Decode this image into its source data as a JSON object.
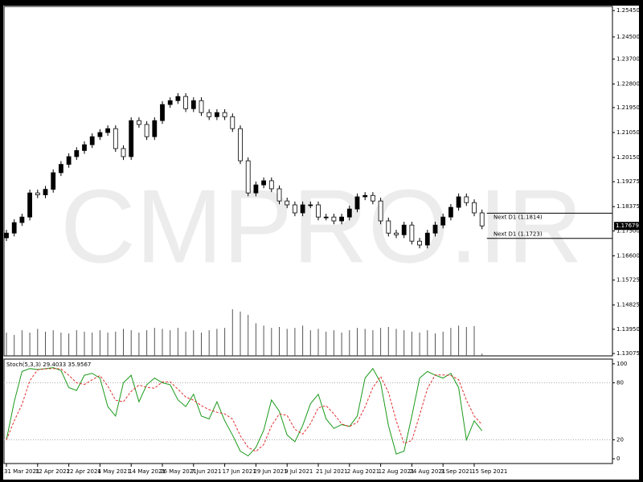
{
  "watermark": "CMPRO.IR",
  "chart_data": [
    {
      "type": "candlestick",
      "categories": [
        "31 Mar 2021",
        null,
        null,
        null,
        "12 Apr 2021",
        null,
        null,
        null,
        "22 Apr 2021",
        null,
        null,
        null,
        "4 May 2021",
        null,
        null,
        null,
        "14 May 2021",
        null,
        null,
        null,
        "26 May 2021",
        null,
        null,
        null,
        "7 Jun 2021",
        null,
        null,
        null,
        "17 Jun 2021",
        null,
        null,
        null,
        "29 Jun 2021",
        null,
        null,
        null,
        "9 Jul 2021",
        null,
        null,
        null,
        "21 Jul 2021",
        null,
        null,
        null,
        "2 Aug 2021",
        null,
        null,
        null,
        "12 Aug 2021",
        null,
        null,
        null,
        "24 Aug 2021",
        null,
        null,
        null,
        "3 Sep 2021",
        null,
        null,
        null,
        "15 Sep 2021",
        null
      ],
      "open": [
        1.1725,
        1.1742,
        1.178,
        1.18,
        1.1887,
        1.188,
        1.19,
        1.196,
        1.199,
        1.2018,
        1.204,
        1.2061,
        1.209,
        1.2105,
        1.2119,
        1.2047,
        1.2018,
        1.2148,
        1.2134,
        1.209,
        1.2148,
        1.2206,
        1.222,
        1.2235,
        1.2191,
        1.222,
        1.2177,
        1.2162,
        1.2177,
        1.2162,
        1.2119,
        1.2003,
        1.1887,
        1.1916,
        1.1931,
        1.1902,
        1.1858,
        1.1844,
        1.1815,
        1.1844,
        1.1844,
        1.18,
        1.18,
        1.1786,
        1.18,
        1.1829,
        1.1873,
        1.1878,
        1.1858,
        1.1786,
        1.1742,
        1.1736,
        1.1771,
        1.1713,
        1.1699,
        1.1742,
        1.1771,
        1.18,
        1.1835,
        1.1873,
        1.1852,
        1.1815
      ],
      "high": [
        1.1754,
        1.1792,
        1.1812,
        1.1899,
        1.1899,
        1.1912,
        1.1972,
        1.2002,
        1.203,
        1.2052,
        1.2073,
        1.2102,
        1.2117,
        1.2131,
        1.2131,
        1.2059,
        1.216,
        1.216,
        1.2146,
        1.216,
        1.2218,
        1.2232,
        1.2247,
        1.2247,
        1.2232,
        1.2232,
        1.2189,
        1.2189,
        1.2189,
        1.2174,
        1.2131,
        1.2015,
        1.1928,
        1.1943,
        1.1943,
        1.1914,
        1.187,
        1.1856,
        1.1856,
        1.1856,
        1.1856,
        1.1812,
        1.1812,
        1.1812,
        1.1841,
        1.1885,
        1.189,
        1.189,
        1.187,
        1.1798,
        1.1754,
        1.1783,
        1.1783,
        1.1725,
        1.1754,
        1.1783,
        1.1812,
        1.1847,
        1.1885,
        1.1885,
        1.1864,
        1.1827
      ],
      "low": [
        1.1713,
        1.173,
        1.1768,
        1.1788,
        1.1868,
        1.1868,
        1.1888,
        1.1948,
        1.1978,
        1.2006,
        1.2028,
        1.2049,
        1.2078,
        1.2093,
        1.2035,
        1.2006,
        1.2006,
        1.2122,
        1.2078,
        1.2078,
        1.2136,
        1.2194,
        1.2208,
        1.2179,
        1.2179,
        1.2165,
        1.215,
        1.215,
        1.215,
        1.2107,
        1.1991,
        1.1875,
        1.1875,
        1.1904,
        1.189,
        1.1846,
        1.1832,
        1.1803,
        1.1803,
        1.1832,
        1.1788,
        1.1788,
        1.1774,
        1.1774,
        1.1788,
        1.1817,
        1.1861,
        1.1846,
        1.1774,
        1.173,
        1.1724,
        1.1724,
        1.1701,
        1.1687,
        1.1687,
        1.173,
        1.1759,
        1.1788,
        1.1823,
        1.184,
        1.1803,
        1.1756
      ],
      "close": [
        1.1742,
        1.178,
        1.18,
        1.1887,
        1.188,
        1.19,
        1.196,
        1.199,
        1.2018,
        1.204,
        1.2061,
        1.209,
        1.2105,
        1.2119,
        1.2047,
        1.2018,
        1.2148,
        1.2134,
        1.209,
        1.2148,
        1.2206,
        1.222,
        1.2235,
        1.2191,
        1.222,
        1.2177,
        1.2162,
        1.2177,
        1.2162,
        1.2119,
        1.2003,
        1.1887,
        1.1916,
        1.1931,
        1.1902,
        1.1858,
        1.1844,
        1.1815,
        1.1844,
        1.1844,
        1.18,
        1.18,
        1.1786,
        1.18,
        1.1829,
        1.1873,
        1.1878,
        1.1858,
        1.1786,
        1.1742,
        1.1736,
        1.1771,
        1.1713,
        1.1699,
        1.1742,
        1.1771,
        1.18,
        1.1835,
        1.1873,
        1.1852,
        1.1815,
        1.1768
      ],
      "volume": [
        50,
        45,
        55,
        50,
        58,
        52,
        55,
        50,
        48,
        55,
        52,
        50,
        55,
        50,
        52,
        58,
        55,
        50,
        55,
        60,
        58,
        55,
        60,
        52,
        55,
        50,
        55,
        58,
        60,
        100,
        95,
        88,
        70,
        65,
        60,
        62,
        58,
        60,
        65,
        55,
        58,
        52,
        55,
        50,
        55,
        60,
        58,
        55,
        60,
        62,
        58,
        55,
        52,
        50,
        55,
        48,
        52,
        60,
        65,
        62,
        64,
        5
      ],
      "ylim": [
        1.1299,
        1.256
      ],
      "yticks": [
        {
          "value": 1.2545,
          "label": "1.25450"
        },
        {
          "value": 1.245,
          "label": "1.24500"
        },
        {
          "value": 1.237,
          "label": "1.23700"
        },
        {
          "value": 1.228,
          "label": "1.22800"
        },
        {
          "value": 1.2195,
          "label": "1.21950"
        },
        {
          "value": 1.2105,
          "label": "1.21050"
        },
        {
          "value": 1.2015,
          "label": "1.20150"
        },
        {
          "value": 1.19275,
          "label": "1.19275"
        },
        {
          "value": 1.18375,
          "label": "1.18375"
        },
        {
          "value": 1.175,
          "label": "1.17500"
        },
        {
          "value": 1.166,
          "label": "1.16600"
        },
        {
          "value": 1.15725,
          "label": "1.15725"
        },
        {
          "value": 1.14825,
          "label": "1.14825"
        },
        {
          "value": 1.1395,
          "label": "1.13950"
        },
        {
          "value": 1.13075,
          "label": "1.13075"
        }
      ],
      "last_price": 1.17679,
      "levels": [
        {
          "value": 1.1814,
          "label": "Next D1 (1.1814)"
        },
        {
          "value": 1.1723,
          "label": "Next D1 (1.1723)"
        }
      ]
    },
    {
      "type": "line",
      "title": "Stoch(5,3,3) 29.4033 35.9567",
      "series": [
        {
          "name": "Main",
          "color": "#1a9a1a",
          "values": [
            20,
            60,
            92,
            95,
            94,
            95,
            96,
            93,
            75,
            72,
            88,
            90,
            85,
            55,
            45,
            80,
            88,
            60,
            78,
            85,
            80,
            78,
            62,
            55,
            68,
            45,
            42,
            60,
            40,
            25,
            8,
            3,
            12,
            30,
            62,
            50,
            25,
            18,
            35,
            58,
            68,
            42,
            32,
            36,
            34,
            45,
            85,
            95,
            80,
            35,
            5,
            8,
            45,
            85,
            92,
            88,
            85,
            90,
            75,
            20,
            40,
            29.4033
          ]
        },
        {
          "name": "Signal",
          "color": "#e03030",
          "dashed": true,
          "values": [
            20,
            40,
            57.3,
            82.3,
            93.7,
            94.7,
            95,
            94.7,
            88,
            80,
            78.3,
            83.3,
            87.7,
            76.7,
            61.7,
            60,
            71,
            77.7,
            75.3,
            74.3,
            81,
            81,
            73.3,
            65,
            61.7,
            56,
            51.7,
            49,
            47.3,
            41.7,
            24.3,
            12,
            7.7,
            15,
            34.7,
            47.3,
            45.7,
            31,
            26,
            37,
            53.7,
            56,
            47.3,
            36.7,
            34,
            38.3,
            54.7,
            75,
            86.7,
            70,
            40,
            16,
            19.3,
            46,
            74,
            88.3,
            88.3,
            87.7,
            83.3,
            61.7,
            45,
            35.9567
          ]
        }
      ],
      "ylim": [
        -5,
        105
      ],
      "yticks": [
        100,
        80,
        20,
        0
      ],
      "levels": [
        80,
        20
      ]
    }
  ]
}
